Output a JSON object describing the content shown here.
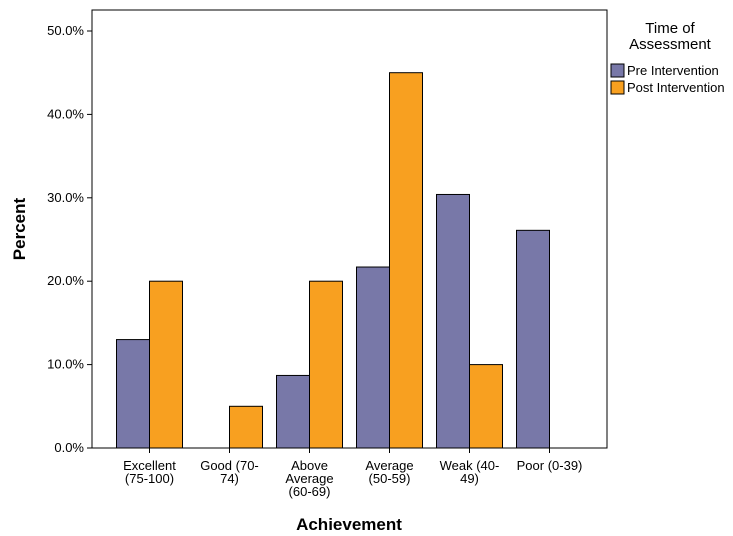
{
  "chart_data": {
    "type": "bar",
    "categories": [
      [
        "Excellent",
        "(75-100)"
      ],
      [
        "Good (70-",
        "74)"
      ],
      [
        "Above",
        "Average",
        "(60-69)"
      ],
      [
        "Average",
        "(50-59)"
      ],
      [
        "Weak (40-",
        "49)"
      ],
      [
        "Poor (0-39)"
      ]
    ],
    "series": [
      {
        "name": "Pre Intervention",
        "values": [
          13.0,
          0.0,
          8.7,
          21.7,
          30.4,
          26.1
        ],
        "color": "#7878a8"
      },
      {
        "name": "Post Intervention",
        "values": [
          20.0,
          5.0,
          20.0,
          45.0,
          10.0,
          0.0
        ],
        "color": "#f8a020"
      }
    ],
    "ylim": [
      0,
      50
    ],
    "yticks": [
      "0.0%",
      "10.0%",
      "20.0%",
      "30.0%",
      "40.0%",
      "50.0%"
    ],
    "xlabel": "Achievement",
    "ylabel": "Percent",
    "legend": {
      "title": [
        "Time of",
        "Assessment"
      ],
      "position": "right"
    },
    "grid": false
  }
}
